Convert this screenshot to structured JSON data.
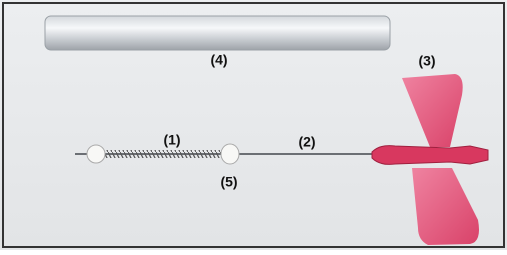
{
  "labels": [
    "(1)",
    "(2)",
    "(3)",
    "(4)",
    "(5)"
  ]
}
